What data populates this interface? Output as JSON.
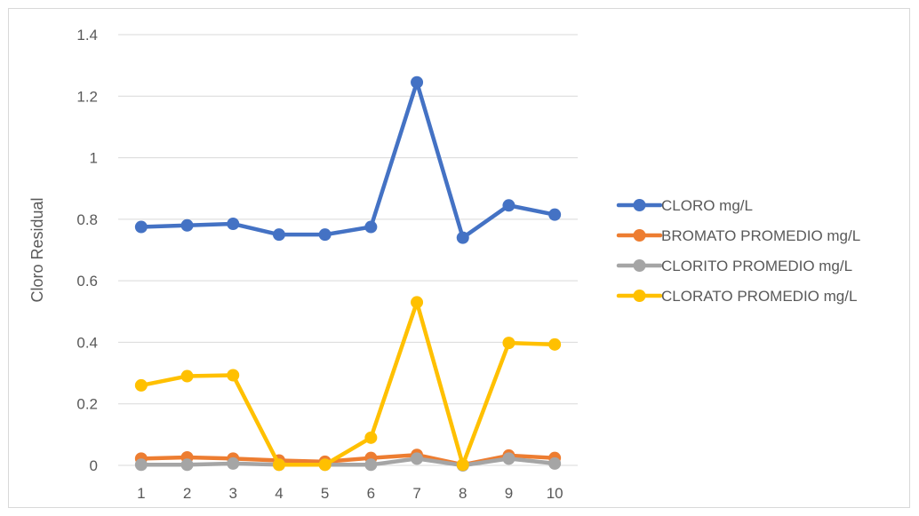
{
  "chart_data": {
    "type": "line",
    "title": "",
    "xlabel": "",
    "ylabel": "Cloro Residual",
    "categories": [
      "1",
      "2",
      "3",
      "4",
      "5",
      "6",
      "7",
      "8",
      "9",
      "10"
    ],
    "ylim": [
      0,
      1.4
    ],
    "yticks": [
      "0",
      "0.2",
      "0.4",
      "0.6",
      "0.8",
      "1",
      "1.2",
      "1.4"
    ],
    "ytick_values": [
      0,
      0.2,
      0.4,
      0.6,
      0.8,
      1.0,
      1.2,
      1.4
    ],
    "grid": true,
    "legend_position": "right",
    "series": [
      {
        "name": "CLORO mg/L",
        "color": "#4472C4",
        "values": [
          0.775,
          0.78,
          0.785,
          0.75,
          0.75,
          0.775,
          1.245,
          0.74,
          0.845,
          0.815
        ]
      },
      {
        "name": "BROMATO PROMEDIO mg/L",
        "color": "#ED7D31",
        "values": [
          0.022,
          0.026,
          0.022,
          0.016,
          0.012,
          0.024,
          0.034,
          0.002,
          0.032,
          0.024
        ]
      },
      {
        "name": "CLORITO PROMEDIO mg/L",
        "color": "#A5A5A5",
        "values": [
          0.002,
          0.002,
          0.006,
          0.002,
          0.002,
          0.002,
          0.022,
          0.0,
          0.022,
          0.006
        ]
      },
      {
        "name": "CLORATO PROMEDIO mg/L",
        "color": "#FFC000",
        "values": [
          0.26,
          0.29,
          0.293,
          0.002,
          0.002,
          0.09,
          0.53,
          0.002,
          0.398,
          0.393
        ]
      }
    ]
  }
}
